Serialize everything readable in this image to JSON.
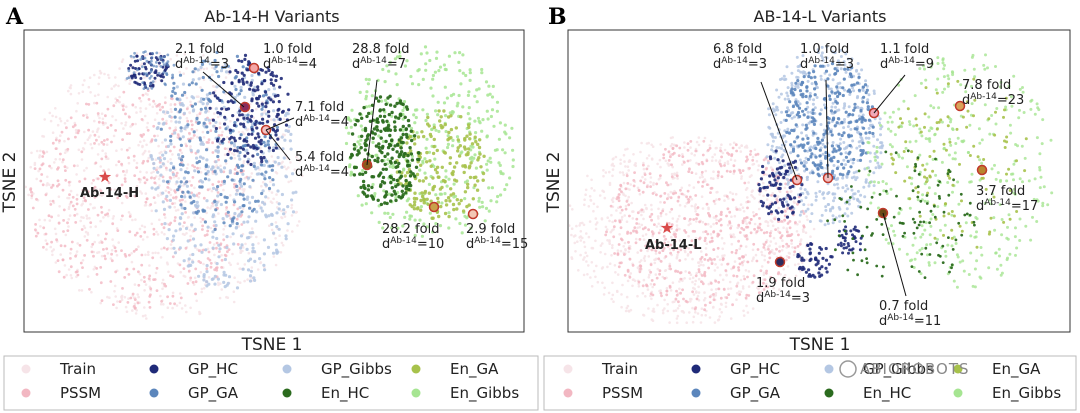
{
  "chart_data": [
    {
      "panel": "A",
      "type": "scatter",
      "title": "Ab-14-H Variants",
      "xlabel": "TSNE 1",
      "ylabel": "TSNE 2",
      "reference_label": "Ab-14-H",
      "highlighted_variants": [
        {
          "fold": "2.1 fold",
          "d": "=3"
        },
        {
          "fold": "1.0 fold",
          "d": "=4"
        },
        {
          "fold": "7.1 fold",
          "d": "=4"
        },
        {
          "fold": "5.4 fold",
          "d": "=4"
        },
        {
          "fold": "28.8 fold",
          "d": "=7"
        },
        {
          "fold": "28.2 fold",
          "d": "=10"
        },
        {
          "fold": "2.9 fold",
          "d": "=15"
        }
      ]
    },
    {
      "panel": "B",
      "type": "scatter",
      "title": "AB-14-L Variants",
      "xlabel": "TSNE 1",
      "ylabel": "TSNE 2",
      "reference_label": "Ab-14-L",
      "highlighted_variants": [
        {
          "fold": "6.8 fold",
          "d": "=3"
        },
        {
          "fold": "1.0 fold",
          "d": "=3"
        },
        {
          "fold": "1.1 fold",
          "d": "=9"
        },
        {
          "fold": "7.8 fold",
          "d": "=23"
        },
        {
          "fold": "3.7 fold",
          "d": "=17"
        },
        {
          "fold": "1.9 fold",
          "d": "=3"
        },
        {
          "fold": "0.7 fold",
          "d": "=11"
        }
      ]
    }
  ],
  "d_prefix": "d",
  "d_superscript": "Ab-14",
  "legend": {
    "entries": [
      {
        "label": "Train",
        "color": "#f6e4e8"
      },
      {
        "label": "PSSM",
        "color": "#f2b7c2"
      },
      {
        "label": "GP_HC",
        "color": "#1f2a78"
      },
      {
        "label": "GP_GA",
        "color": "#5c86bc"
      },
      {
        "label": "GP_Gibbs",
        "color": "#b4c7e3"
      },
      {
        "label": "En_HC",
        "color": "#2b6b1e"
      },
      {
        "label": "En_GA",
        "color": "#a7c24b"
      },
      {
        "label": "En_Gibbs",
        "color": "#a6e592"
      }
    ]
  },
  "watermark": "ABIOROBOTS",
  "colors": {
    "train": "#f6e4e8",
    "pssm": "#f2b7c2",
    "gp_hc": "#1f2a78",
    "gp_ga": "#5c86bc",
    "gp_gibbs": "#b4c7e3",
    "en_hc": "#2b6b1e",
    "en_ga": "#a7c24b",
    "en_gibbs": "#a6e592",
    "star": "#d94a4a",
    "highlight_ring": "#c0392b"
  }
}
